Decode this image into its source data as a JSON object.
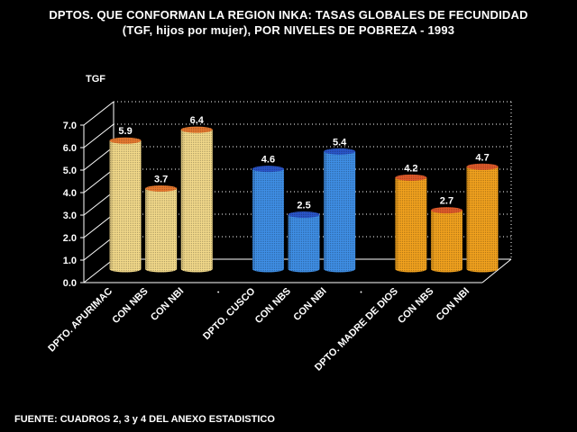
{
  "title": "DPTOS. QUE CONFORMAN LA REGION INKA: TASAS GLOBALES DE FECUNDIDAD",
  "subtitle": "(TGF, hijos por mujer), POR NIVELES DE POBREZA - 1993",
  "source": "FUENTE: CUADROS 2, 3 y 4 DEL ANEXO ESTADISTICO",
  "chart_data": {
    "type": "bar",
    "title": "DPTOS. QUE CONFORMAN LA REGION INKA: TASAS GLOBALES DE FECUNDIDAD",
    "subtitle": "(TGF, hijos por mujer), POR NIVELES DE POBREZA - 1993",
    "ylabel": "TGF",
    "xlabel": "",
    "ylim": [
      0,
      7
    ],
    "yticks": [
      "0.0",
      "1.0",
      "2.0",
      "3.0",
      "4.0",
      "5.0",
      "6.0",
      "7.0"
    ],
    "grid": true,
    "categories": [
      "DPTO. APURIMAC",
      "CON NBS",
      "CON NBI",
      ".",
      "DPTO. CUSCO",
      "CON NBS",
      "CON NBI",
      ".",
      "DPTO. MADRE DE DIOS",
      "CON NBS",
      "CON NBI"
    ],
    "values": [
      5.9,
      3.7,
      6.4,
      null,
      4.6,
      2.5,
      5.4,
      null,
      4.2,
      2.7,
      4.7
    ],
    "value_labels": [
      "5.9",
      "3.7",
      "6.4",
      "",
      "4.6",
      "2.5",
      "5.4",
      "",
      "4.2",
      "2.7",
      "4.7"
    ],
    "bar_colors": [
      "#f2d98a",
      "#f2d98a",
      "#f2d98a",
      "",
      "#3f8fe6",
      "#3f8fe6",
      "#3f8fe6",
      "",
      "#f2a21e",
      "#f2a21e",
      "#f2a21e"
    ],
    "top_colors": [
      "#e7792f",
      "#e7792f",
      "#e7792f",
      "",
      "#2a55c8",
      "#2a55c8",
      "#2a55c8",
      "",
      "#e05a2a",
      "#e05a2a",
      "#e05a2a"
    ]
  }
}
